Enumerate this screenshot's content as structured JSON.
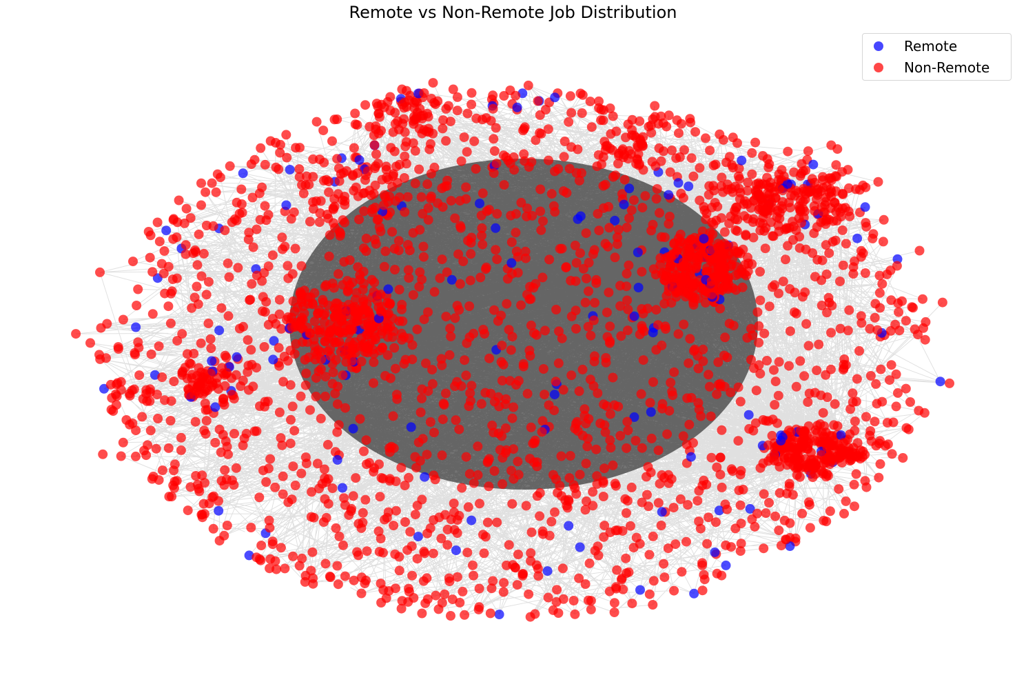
{
  "chart_data": {
    "type": "scatter",
    "subtype": "network-graph",
    "title": "Remote vs Non-Remote Job Distribution",
    "xlabel": "",
    "ylabel": "",
    "axes_visible": false,
    "grid": false,
    "legend_position": "top-right",
    "series": [
      {
        "name": "Remote",
        "color": "#0000ff"
      },
      {
        "name": "Non-Remote",
        "color": "#ff0000"
      }
    ],
    "edge_color": "#000000",
    "node_alpha": 0.7
  }
}
